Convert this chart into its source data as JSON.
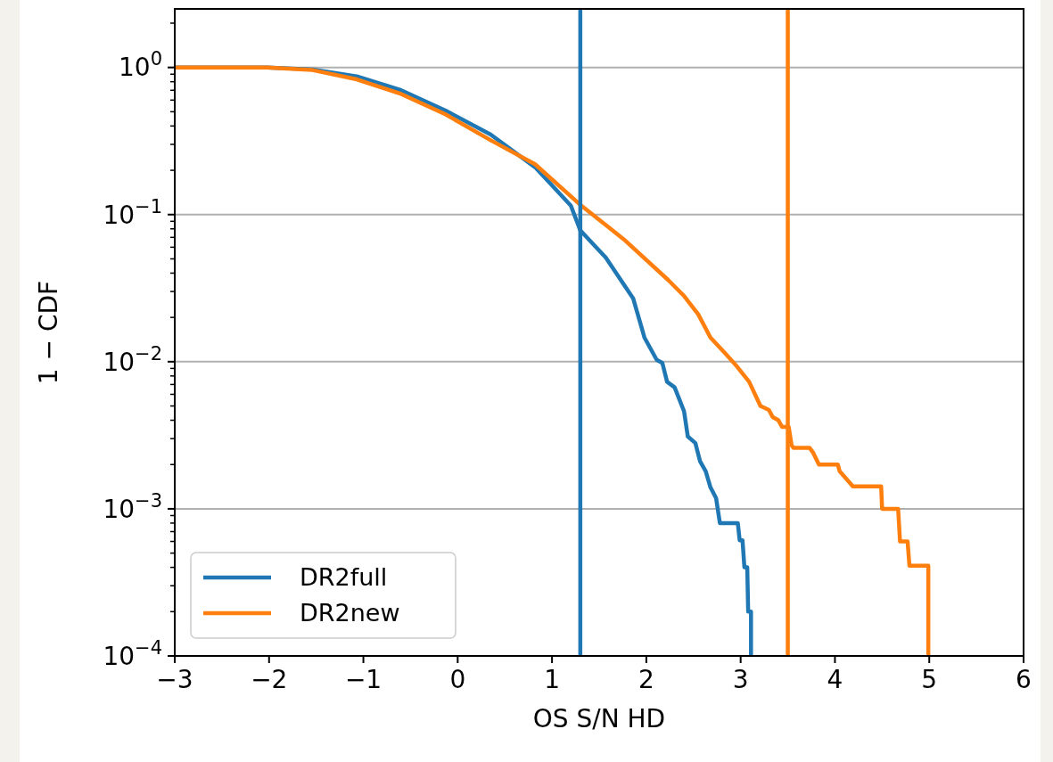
{
  "chart_data": {
    "type": "line",
    "xlabel": "OS S/N HD",
    "ylabel": "1 − CDF",
    "log": "y",
    "grid": "y",
    "legend": "bottom left",
    "line_style": "solid",
    "xlim": [
      -3,
      6
    ],
    "xticks": [
      {
        "value": -3,
        "label": "−3"
      },
      {
        "value": -2,
        "label": "−2"
      },
      {
        "value": -1,
        "label": "−1"
      },
      0,
      1,
      2,
      3,
      4,
      5,
      6
    ],
    "ylim": [
      0.0001,
      2.5
    ],
    "yticks": [
      {
        "value": 0.0001,
        "label": "10$^{−4}$"
      },
      {
        "value": 0.0002,
        "label": null
      },
      {
        "value": 0.0003,
        "label": null
      },
      {
        "value": 0.0004,
        "label": null
      },
      {
        "value": 0.0005,
        "label": null
      },
      {
        "value": 0.0006,
        "label": null
      },
      {
        "value": 0.0007,
        "label": null
      },
      {
        "value": 0.0008,
        "label": null
      },
      {
        "value": 0.0009,
        "label": null
      },
      {
        "value": 0.001,
        "label": "10$^{−3}$"
      },
      {
        "value": 0.002,
        "label": null
      },
      {
        "value": 0.003,
        "label": null
      },
      {
        "value": 0.004,
        "label": null
      },
      {
        "value": 0.005,
        "label": null
      },
      {
        "value": 0.006,
        "label": null
      },
      {
        "value": 0.007,
        "label": null
      },
      {
        "value": 0.008,
        "label": null
      },
      {
        "value": 0.009,
        "label": null
      },
      {
        "value": 0.01,
        "label": "10$^{−2}$"
      },
      {
        "value": 0.02,
        "label": null
      },
      {
        "value": 0.03,
        "label": null
      },
      {
        "value": 0.04,
        "label": null
      },
      {
        "value": 0.05,
        "label": null
      },
      {
        "value": 0.06,
        "label": null
      },
      {
        "value": 0.07,
        "label": null
      },
      {
        "value": 0.08,
        "label": null
      },
      {
        "value": 0.09,
        "label": null
      },
      {
        "value": 0.1,
        "label": "10$^{−1}$"
      },
      {
        "value": 0.2,
        "label": null
      },
      {
        "value": 0.3,
        "label": null
      },
      {
        "value": 0.4,
        "label": null
      },
      {
        "value": 0.5,
        "label": null
      },
      {
        "value": 0.6,
        "label": null
      },
      {
        "value": 0.7,
        "label": null
      },
      {
        "value": 0.8,
        "label": null
      },
      {
        "value": 0.9,
        "label": null
      },
      {
        "value": 1,
        "label": "10$^{0}$"
      },
      {
        "value": 2,
        "label": null
      }
    ],
    "ref_lines": [
      {
        "axis": "x",
        "value": 1.3,
        "color": "#1f77b4"
      },
      {
        "axis": "x",
        "value": 3.5,
        "color": "#ff7f0e"
      }
    ],
    "series": [
      {
        "name": "DR2full",
        "color": "#1f77b4",
        "x": [
          -3,
          -2.02,
          -1.54,
          -1.07,
          -0.6,
          -0.13,
          0.35,
          0.82,
          1.2,
          1.3,
          1.57,
          1.86,
          1.98,
          2.11,
          2.17,
          2.22,
          2.3,
          2.4,
          2.44,
          2.52,
          2.57,
          2.63,
          2.68,
          2.74,
          2.78,
          2.97,
          2.99,
          3.02,
          3.04,
          3.07,
          3.08,
          3.11,
          3.11
        ],
        "values": [
          1,
          1,
          0.97,
          0.87,
          0.7,
          0.51,
          0.35,
          0.21,
          0.115,
          0.078,
          0.051,
          0.027,
          0.0146,
          0.0103,
          0.0098,
          0.0073,
          0.0067,
          0.0046,
          0.0031,
          0.0028,
          0.0021,
          0.0018,
          0.0014,
          0.00118,
          0.0008,
          0.0008,
          0.00061,
          0.00061,
          0.0004,
          0.0004,
          0.0002,
          0.0002,
          0.0001
        ]
      },
      {
        "name": "DR2new",
        "color": "#ff7f0e",
        "x": [
          -3,
          -2.02,
          -1.54,
          -1.07,
          -0.6,
          -0.13,
          0.35,
          0.82,
          1.29,
          1.76,
          2.23,
          2.4,
          2.55,
          2.68,
          2.83,
          2.96,
          3.09,
          3.21,
          3.3,
          3.34,
          3.4,
          3.44,
          3.51,
          3.54,
          3.56,
          3.73,
          3.77,
          3.83,
          4.03,
          4.05,
          4.11,
          4.19,
          4.49,
          4.5,
          4.67,
          4.69,
          4.77,
          4.79,
          4.99,
          4.99
        ],
        "values": [
          1,
          1,
          0.96,
          0.83,
          0.66,
          0.48,
          0.32,
          0.22,
          0.118,
          0.068,
          0.036,
          0.028,
          0.021,
          0.0146,
          0.0115,
          0.0093,
          0.0073,
          0.005,
          0.0047,
          0.0042,
          0.004,
          0.0036,
          0.0036,
          0.0027,
          0.0026,
          0.0026,
          0.0024,
          0.002,
          0.002,
          0.0018,
          0.00163,
          0.00142,
          0.00142,
          0.001,
          0.001,
          0.0006,
          0.0006,
          0.00041,
          0.00041,
          0.0001
        ]
      }
    ]
  }
}
